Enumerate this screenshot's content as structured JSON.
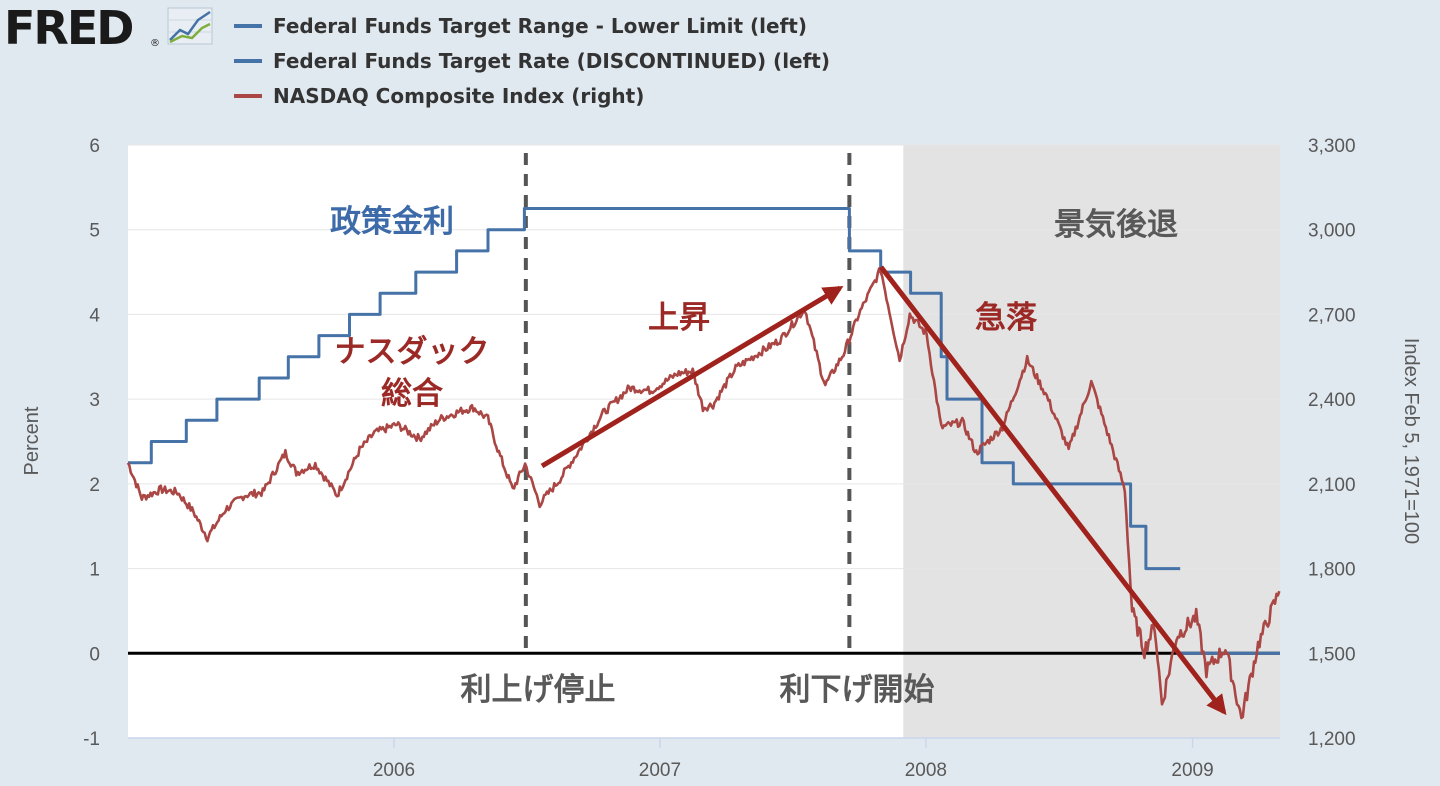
{
  "logo": {
    "text": "FRED",
    "mark": "®",
    "icon": "line-graph-icon"
  },
  "legend": [
    {
      "label": "Federal Funds Target Range - Lower Limit (left)",
      "color": "#4572a7"
    },
    {
      "label": "Federal Funds Target Rate (DISCONTINUED) (left)",
      "color": "#4572a7"
    },
    {
      "label": "NASDAQ Composite Index (right)",
      "color": "#aa4643"
    }
  ],
  "chart_data": {
    "type": "line",
    "xlim": [
      "2005-01-01",
      "2009-05-01"
    ],
    "x_ticks": [
      "2006",
      "2007",
      "2008",
      "2009"
    ],
    "y_left": {
      "label": "Percent",
      "ylim": [
        -1,
        6
      ],
      "ticks": [
        "6",
        "5",
        "4",
        "3",
        "2",
        "1",
        "0",
        "-1"
      ]
    },
    "y_right": {
      "label": "Index Feb 5, 1971=100",
      "ylim": [
        1200,
        3300
      ],
      "ticks": [
        "3,300",
        "3,000",
        "2,700",
        "2,400",
        "2,100",
        "1,800",
        "1,500",
        "1,200"
      ]
    },
    "grid": true,
    "recession": {
      "start": "2007-12-01",
      "end": "2009-06-01",
      "label": "景気後退"
    },
    "series": [
      {
        "name": "Federal Funds Target Rate (DISCONTINUED) (left)",
        "axis": "left",
        "color": "#4572a7",
        "step": true,
        "points": [
          [
            "2005-01-01",
            2.25
          ],
          [
            "2005-02-02",
            2.5
          ],
          [
            "2005-03-22",
            2.75
          ],
          [
            "2005-05-03",
            3.0
          ],
          [
            "2005-06-30",
            3.25
          ],
          [
            "2005-08-09",
            3.5
          ],
          [
            "2005-09-20",
            3.75
          ],
          [
            "2005-11-01",
            4.0
          ],
          [
            "2005-12-13",
            4.25
          ],
          [
            "2006-01-31",
            4.5
          ],
          [
            "2006-03-28",
            4.75
          ],
          [
            "2006-05-10",
            5.0
          ],
          [
            "2006-06-29",
            5.25
          ],
          [
            "2007-09-18",
            4.75
          ],
          [
            "2007-10-31",
            4.5
          ],
          [
            "2007-12-11",
            4.25
          ],
          [
            "2008-01-22",
            3.5
          ],
          [
            "2008-01-30",
            3.0
          ],
          [
            "2008-03-18",
            2.25
          ],
          [
            "2008-04-30",
            2.0
          ],
          [
            "2008-10-08",
            1.5
          ],
          [
            "2008-10-29",
            1.0
          ],
          [
            "2008-12-15",
            1.0
          ]
        ]
      },
      {
        "name": "Federal Funds Target Range - Lower Limit (left)",
        "axis": "left",
        "color": "#4572a7",
        "step": true,
        "points": [
          [
            "2008-12-16",
            0.0
          ],
          [
            "2009-05-01",
            0.0
          ]
        ]
      },
      {
        "name": "NASDAQ Composite Index (right)",
        "axis": "right",
        "color": "#aa4643",
        "points": [
          [
            "2005-01-01",
            2175
          ],
          [
            "2005-01-20",
            2050
          ],
          [
            "2005-02-15",
            2080
          ],
          [
            "2005-03-10",
            2070
          ],
          [
            "2005-04-01",
            2000
          ],
          [
            "2005-04-20",
            1910
          ],
          [
            "2005-05-15",
            2010
          ],
          [
            "2005-06-10",
            2060
          ],
          [
            "2005-07-05",
            2070
          ],
          [
            "2005-08-05",
            2210
          ],
          [
            "2005-08-20",
            2140
          ],
          [
            "2005-09-15",
            2170
          ],
          [
            "2005-10-15",
            2060
          ],
          [
            "2005-11-15",
            2220
          ],
          [
            "2005-12-05",
            2280
          ],
          [
            "2006-01-05",
            2310
          ],
          [
            "2006-02-05",
            2260
          ],
          [
            "2006-03-05",
            2330
          ],
          [
            "2006-04-05",
            2360
          ],
          [
            "2006-04-20",
            2370
          ],
          [
            "2006-05-10",
            2330
          ],
          [
            "2006-05-25",
            2210
          ],
          [
            "2006-06-13",
            2080
          ],
          [
            "2006-06-30",
            2170
          ],
          [
            "2006-07-20",
            2030
          ],
          [
            "2006-08-15",
            2110
          ],
          [
            "2006-09-15",
            2230
          ],
          [
            "2006-10-15",
            2350
          ],
          [
            "2006-11-20",
            2440
          ],
          [
            "2006-12-20",
            2430
          ],
          [
            "2007-01-25",
            2490
          ],
          [
            "2007-02-15",
            2500
          ],
          [
            "2007-03-01",
            2370
          ],
          [
            "2007-03-15",
            2380
          ],
          [
            "2007-04-15",
            2510
          ],
          [
            "2007-05-15",
            2560
          ],
          [
            "2007-06-15",
            2610
          ],
          [
            "2007-07-19",
            2720
          ],
          [
            "2007-08-10",
            2500
          ],
          [
            "2007-08-16",
            2450
          ],
          [
            "2007-09-10",
            2560
          ],
          [
            "2007-10-01",
            2700
          ],
          [
            "2007-10-31",
            2860
          ],
          [
            "2007-11-26",
            2540
          ],
          [
            "2007-12-10",
            2700
          ],
          [
            "2008-01-02",
            2630
          ],
          [
            "2008-01-22",
            2300
          ],
          [
            "2008-02-20",
            2320
          ],
          [
            "2008-03-10",
            2210
          ],
          [
            "2008-04-15",
            2300
          ],
          [
            "2008-05-19",
            2540
          ],
          [
            "2008-06-15",
            2410
          ],
          [
            "2008-07-15",
            2220
          ],
          [
            "2008-08-15",
            2460
          ],
          [
            "2008-09-10",
            2250
          ],
          [
            "2008-09-30",
            2080
          ],
          [
            "2008-10-10",
            1650
          ],
          [
            "2008-10-27",
            1510
          ],
          [
            "2008-11-10",
            1600
          ],
          [
            "2008-11-20",
            1320
          ],
          [
            "2008-12-10",
            1560
          ],
          [
            "2009-01-06",
            1630
          ],
          [
            "2009-01-20",
            1440
          ],
          [
            "2009-02-15",
            1520
          ],
          [
            "2009-03-09",
            1270
          ],
          [
            "2009-04-01",
            1530
          ],
          [
            "2009-04-30",
            1720
          ]
        ]
      }
    ],
    "annotations": {
      "policy_rate": "政策金利",
      "nasdaq_line1": "ナスダック",
      "nasdaq_line2": "総合",
      "rise": "上昇",
      "plunge": "急落",
      "recession": "景気後退",
      "hike_stop": "利上げ停止",
      "cut_start": "利下げ開始"
    },
    "annotation_colors": {
      "blue": "#3d6aa8",
      "red": "#9b2a26",
      "gray": "#595959",
      "arrow": "#a0221c"
    },
    "events": {
      "hike_stop_date": "2006-07-01",
      "cut_start_date": "2007-09-18"
    }
  }
}
